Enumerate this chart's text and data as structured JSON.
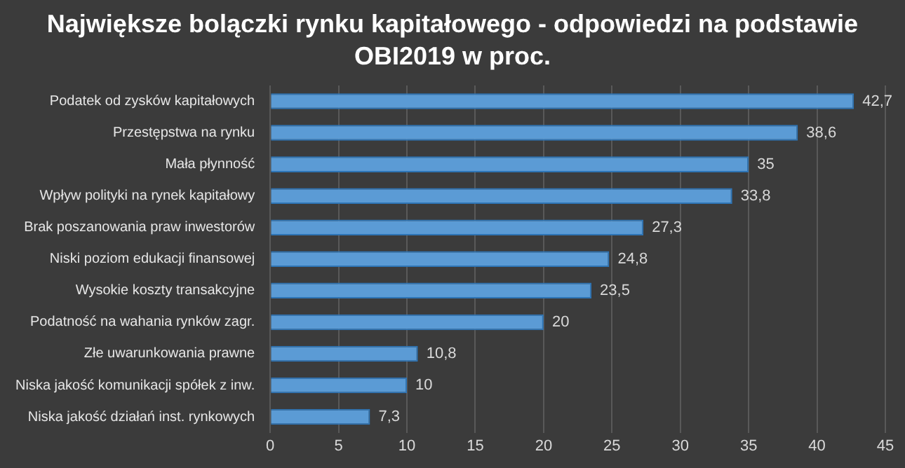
{
  "chart_data": {
    "type": "bar",
    "orientation": "horizontal",
    "title": "Największe bolączki rynku kapitałowego - odpowiedzi na podstawie OBI2019 w proc.",
    "categories": [
      "Podatek od zysków kapitałowych",
      "Przestępstwa na rynku",
      "Mała płynność",
      "Wpływ polityki na rynek kapitałowy",
      "Brak poszanowania praw inwestorów",
      "Niski poziom edukacji finansowej",
      "Wysokie koszty transakcyjne",
      "Podatność na wahania rynków zagr.",
      "Złe uwarunkowania prawne",
      "Niska jakość komunikacji spółek z inw.",
      "Niska jakość działań inst. rynkowych"
    ],
    "values": [
      42.7,
      38.6,
      35,
      33.8,
      27.3,
      24.8,
      23.5,
      20,
      10.8,
      10,
      7.3
    ],
    "value_labels": [
      "42,7",
      "38,6",
      "35",
      "33,8",
      "27,3",
      "24,8",
      "23,5",
      "20",
      "10,8",
      "10",
      "7,3"
    ],
    "color": "#5b9bd5",
    "xlim": [
      0,
      45
    ],
    "xticks": [
      0,
      5,
      10,
      15,
      20,
      25,
      30,
      35,
      40,
      45
    ],
    "grid": "x",
    "legend": false
  }
}
